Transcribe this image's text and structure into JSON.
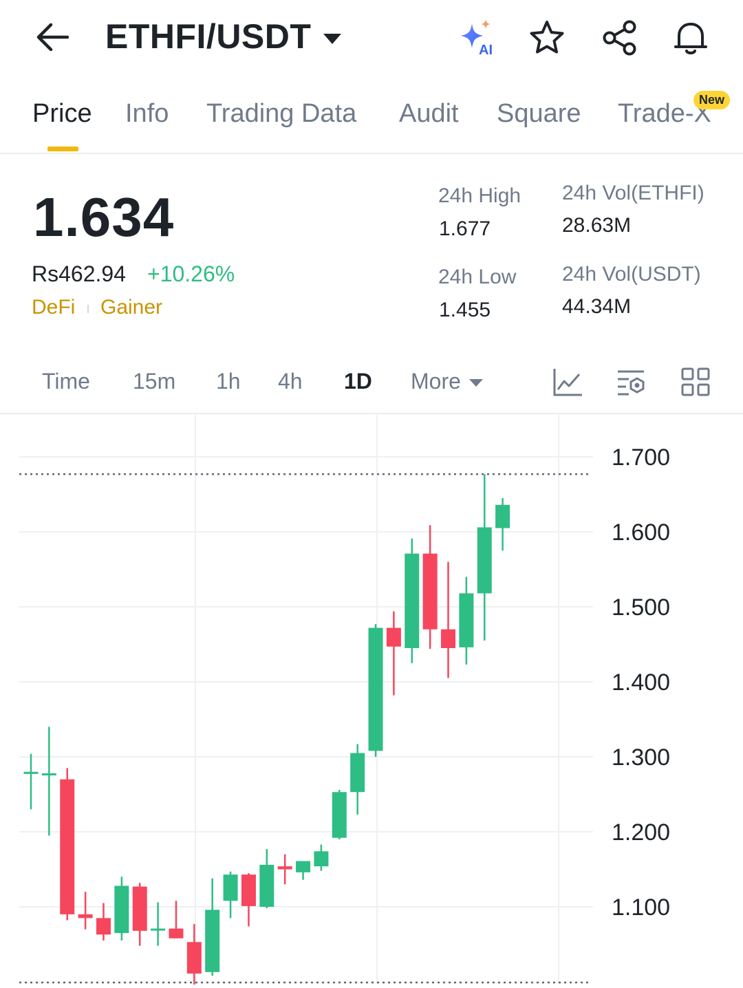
{
  "header": {
    "pair": "ETHFI/USDT",
    "icons": {
      "back": "back-arrow-icon",
      "ai": "ai-sparkle-icon",
      "ai_label": "AI",
      "favorite": "star-icon",
      "share": "share-icon",
      "alert": "bell-icon"
    }
  },
  "tabs": [
    {
      "label": "Price"
    },
    {
      "label": "Info"
    },
    {
      "label": "Trading Data"
    },
    {
      "label": "Audit"
    },
    {
      "label": "Square"
    },
    {
      "label": "Trade-X"
    }
  ],
  "new_badge": "New",
  "price": {
    "last": "1.634",
    "fiat": "Rs462.94",
    "change": "+10.26%",
    "tags": [
      "DeFi",
      "Gainer"
    ]
  },
  "stats": {
    "high_label": "24h High",
    "high_value": "1.677",
    "low_label": "24h Low",
    "low_value": "1.455",
    "vol_base_label": "24h Vol(ETHFI)",
    "vol_base_value": "28.63M",
    "vol_quote_label": "24h Vol(USDT)",
    "vol_quote_value": "44.34M"
  },
  "intervals": [
    "Time",
    "15m",
    "1h",
    "4h",
    "1D",
    "More"
  ],
  "tool_icons": [
    "line-chart-icon",
    "indicator-settings-icon",
    "layout-grid-icon"
  ],
  "colors": {
    "up": "#2ebd85",
    "down": "#f6465d",
    "accent": "#f0b90b",
    "tag": "#c99400"
  },
  "chart_data": {
    "type": "candlestick",
    "y_ticks": [
      "1.700",
      "1.600",
      "1.500",
      "1.400",
      "1.300",
      "1.200",
      "1.100"
    ],
    "ylim": [
      1.0,
      1.7
    ],
    "grid": true,
    "candles": [
      {
        "o": 1.28,
        "h": 1.304,
        "l": 1.23,
        "c": 1.28
      },
      {
        "o": 1.278,
        "h": 1.34,
        "l": 1.195,
        "c": 1.278
      },
      {
        "o": 1.27,
        "h": 1.285,
        "l": 1.082,
        "c": 1.09
      },
      {
        "o": 1.09,
        "h": 1.12,
        "l": 1.07,
        "c": 1.085
      },
      {
        "o": 1.085,
        "h": 1.105,
        "l": 1.055,
        "c": 1.063
      },
      {
        "o": 1.065,
        "h": 1.14,
        "l": 1.055,
        "c": 1.128
      },
      {
        "o": 1.127,
        "h": 1.132,
        "l": 1.048,
        "c": 1.068
      },
      {
        "o": 1.071,
        "h": 1.106,
        "l": 1.048,
        "c": 1.071
      },
      {
        "o": 1.071,
        "h": 1.108,
        "l": 1.058,
        "c": 1.058
      },
      {
        "o": 1.053,
        "h": 1.077,
        "l": 0.99,
        "c": 1.011
      },
      {
        "o": 1.013,
        "h": 1.138,
        "l": 1.008,
        "c": 1.096
      },
      {
        "o": 1.108,
        "h": 1.147,
        "l": 1.085,
        "c": 1.143
      },
      {
        "o": 1.143,
        "h": 1.145,
        "l": 1.074,
        "c": 1.101
      },
      {
        "o": 1.1,
        "h": 1.177,
        "l": 1.098,
        "c": 1.156
      },
      {
        "o": 1.154,
        "h": 1.17,
        "l": 1.13,
        "c": 1.15
      },
      {
        "o": 1.146,
        "h": 1.161,
        "l": 1.136,
        "c": 1.161
      },
      {
        "o": 1.154,
        "h": 1.183,
        "l": 1.148,
        "c": 1.174
      },
      {
        "o": 1.192,
        "h": 1.256,
        "l": 1.19,
        "c": 1.253
      },
      {
        "o": 1.253,
        "h": 1.317,
        "l": 1.223,
        "c": 1.305
      },
      {
        "o": 1.308,
        "h": 1.477,
        "l": 1.3,
        "c": 1.472
      },
      {
        "o": 1.472,
        "h": 1.494,
        "l": 1.382,
        "c": 1.447
      },
      {
        "o": 1.445,
        "h": 1.591,
        "l": 1.425,
        "c": 1.571
      },
      {
        "o": 1.571,
        "h": 1.609,
        "l": 1.444,
        "c": 1.47
      },
      {
        "o": 1.47,
        "h": 1.56,
        "l": 1.405,
        "c": 1.445
      },
      {
        "o": 1.446,
        "h": 1.54,
        "l": 1.423,
        "c": 1.518
      },
      {
        "o": 1.518,
        "h": 1.677,
        "l": 1.455,
        "c": 1.606
      },
      {
        "o": 1.605,
        "h": 1.645,
        "l": 1.575,
        "c": 1.636
      }
    ],
    "high_marker": 1.677,
    "low_marker": 0.99
  }
}
